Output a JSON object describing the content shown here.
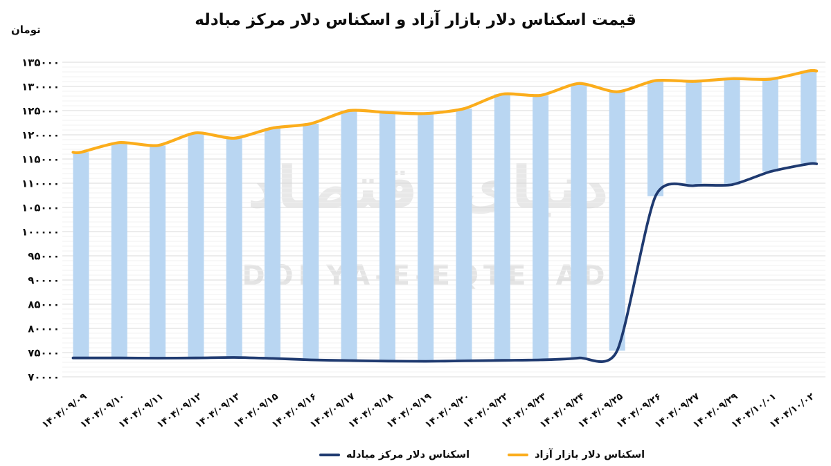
{
  "title": "قیمت اسکناس دلار بازار آزاد و اسکناس دلار مرکز مبادله",
  "y_axis": {
    "unit": "تومان",
    "tick_values": [
      135000,
      130000,
      125000,
      120000,
      115000,
      110000,
      105000,
      100000,
      95000,
      90000,
      85000,
      80000,
      75000,
      70000
    ],
    "tick_labels": [
      "۱۳۵۰۰۰",
      "۱۳۰۰۰۰",
      "۱۲۵۰۰۰",
      "۱۲۰۰۰۰",
      "۱۱۵۰۰۰",
      "۱۱۰۰۰۰",
      "۱۰۵۰۰۰",
      "۱۰۰۰۰۰",
      "۹۵۰۰۰",
      "۹۰۰۰۰",
      "۸۵۰۰۰",
      "۸۰۰۰۰",
      "۷۵۰۰۰",
      "۷۰۰۰۰"
    ]
  },
  "watermark": {
    "persian": "دنیای اقتصاد",
    "latin": "DONYA-E-EQTESAD"
  },
  "legend": [
    {
      "label": "اسکناس دلار مرکز مبادله",
      "color": "#1F3A70"
    },
    {
      "label": "اسکناس دلار بازار آزاد",
      "color": "#FBAD1C"
    }
  ],
  "colors": {
    "bar_fill": "#B9D6F2",
    "free_market_line": "#FBAD1C",
    "exchange_line": "#1F3A70",
    "grid_major": "#D8D8D8",
    "grid_minor": "#F1F1F1",
    "text": "#0D0D0D"
  },
  "chart_data": {
    "type": "bar",
    "subtype": "floating-range-bars-with-smoothed-lines",
    "title": "قیمت اسکناس دلار بازار آزاد و اسکناس دلار مرکز مبادله",
    "ylabel": "تومان",
    "xlabel": "",
    "ylim": [
      70000,
      135000
    ],
    "ytick_step": 5000,
    "ytick_minor_step": 1000,
    "grid": true,
    "legend_position": "bottom",
    "categories": [
      "۱۴۰۴/۰۹/۰۹",
      "۱۴۰۴/۰۹/۱۰",
      "۱۴۰۴/۰۹/۱۱",
      "۱۴۰۴/۰۹/۱۲",
      "۱۴۰۴/۰۹/۱۳",
      "۱۴۰۴/۰۹/۱۵",
      "۱۴۰۴/۰۹/۱۶",
      "۱۴۰۴/۰۹/۱۷",
      "۱۴۰۴/۰۹/۱۸",
      "۱۴۰۴/۰۹/۱۹",
      "۱۴۰۴/۰۹/۲۰",
      "۱۴۰۴/۰۹/۲۲",
      "۱۴۰۴/۰۹/۲۳",
      "۱۴۰۴/۰۹/۲۴",
      "۱۴۰۴/۰۹/۲۵",
      "۱۴۰۴/۰۹/۲۶",
      "۱۴۰۴/۰۹/۲۷",
      "۱۴۰۴/۰۹/۲۹",
      "۱۴۰۴/۱۰/۰۱",
      "۱۴۰۴/۱۰/۰۲"
    ],
    "series": [
      {
        "name": "اسکناس دلار بازار آزاد",
        "type": "line",
        "color": "#FBAD1C",
        "values": [
          116400,
          118400,
          117800,
          120400,
          119300,
          121400,
          122300,
          125000,
          124600,
          124400,
          125400,
          128400,
          128150,
          130600,
          128900,
          131200,
          131050,
          131600,
          131500,
          133200
        ]
      },
      {
        "name": "اسکناس دلار مرکز مبادله",
        "type": "line",
        "color": "#1F3A70",
        "values": [
          73900,
          73900,
          73850,
          73900,
          74000,
          73800,
          73500,
          73350,
          73250,
          73200,
          73300,
          73400,
          73500,
          73900,
          75400,
          107300,
          109500,
          109700,
          112400,
          114000
        ]
      }
    ],
    "bars": {
      "description": "bars span vertically between exchange-center value (bottom) and free-market value (top)",
      "color": "#B9D6F2",
      "upper_series": "اسکناس دلار بازار آزاد",
      "lower_series": "اسکناس دلار مرکز مبادله"
    }
  }
}
